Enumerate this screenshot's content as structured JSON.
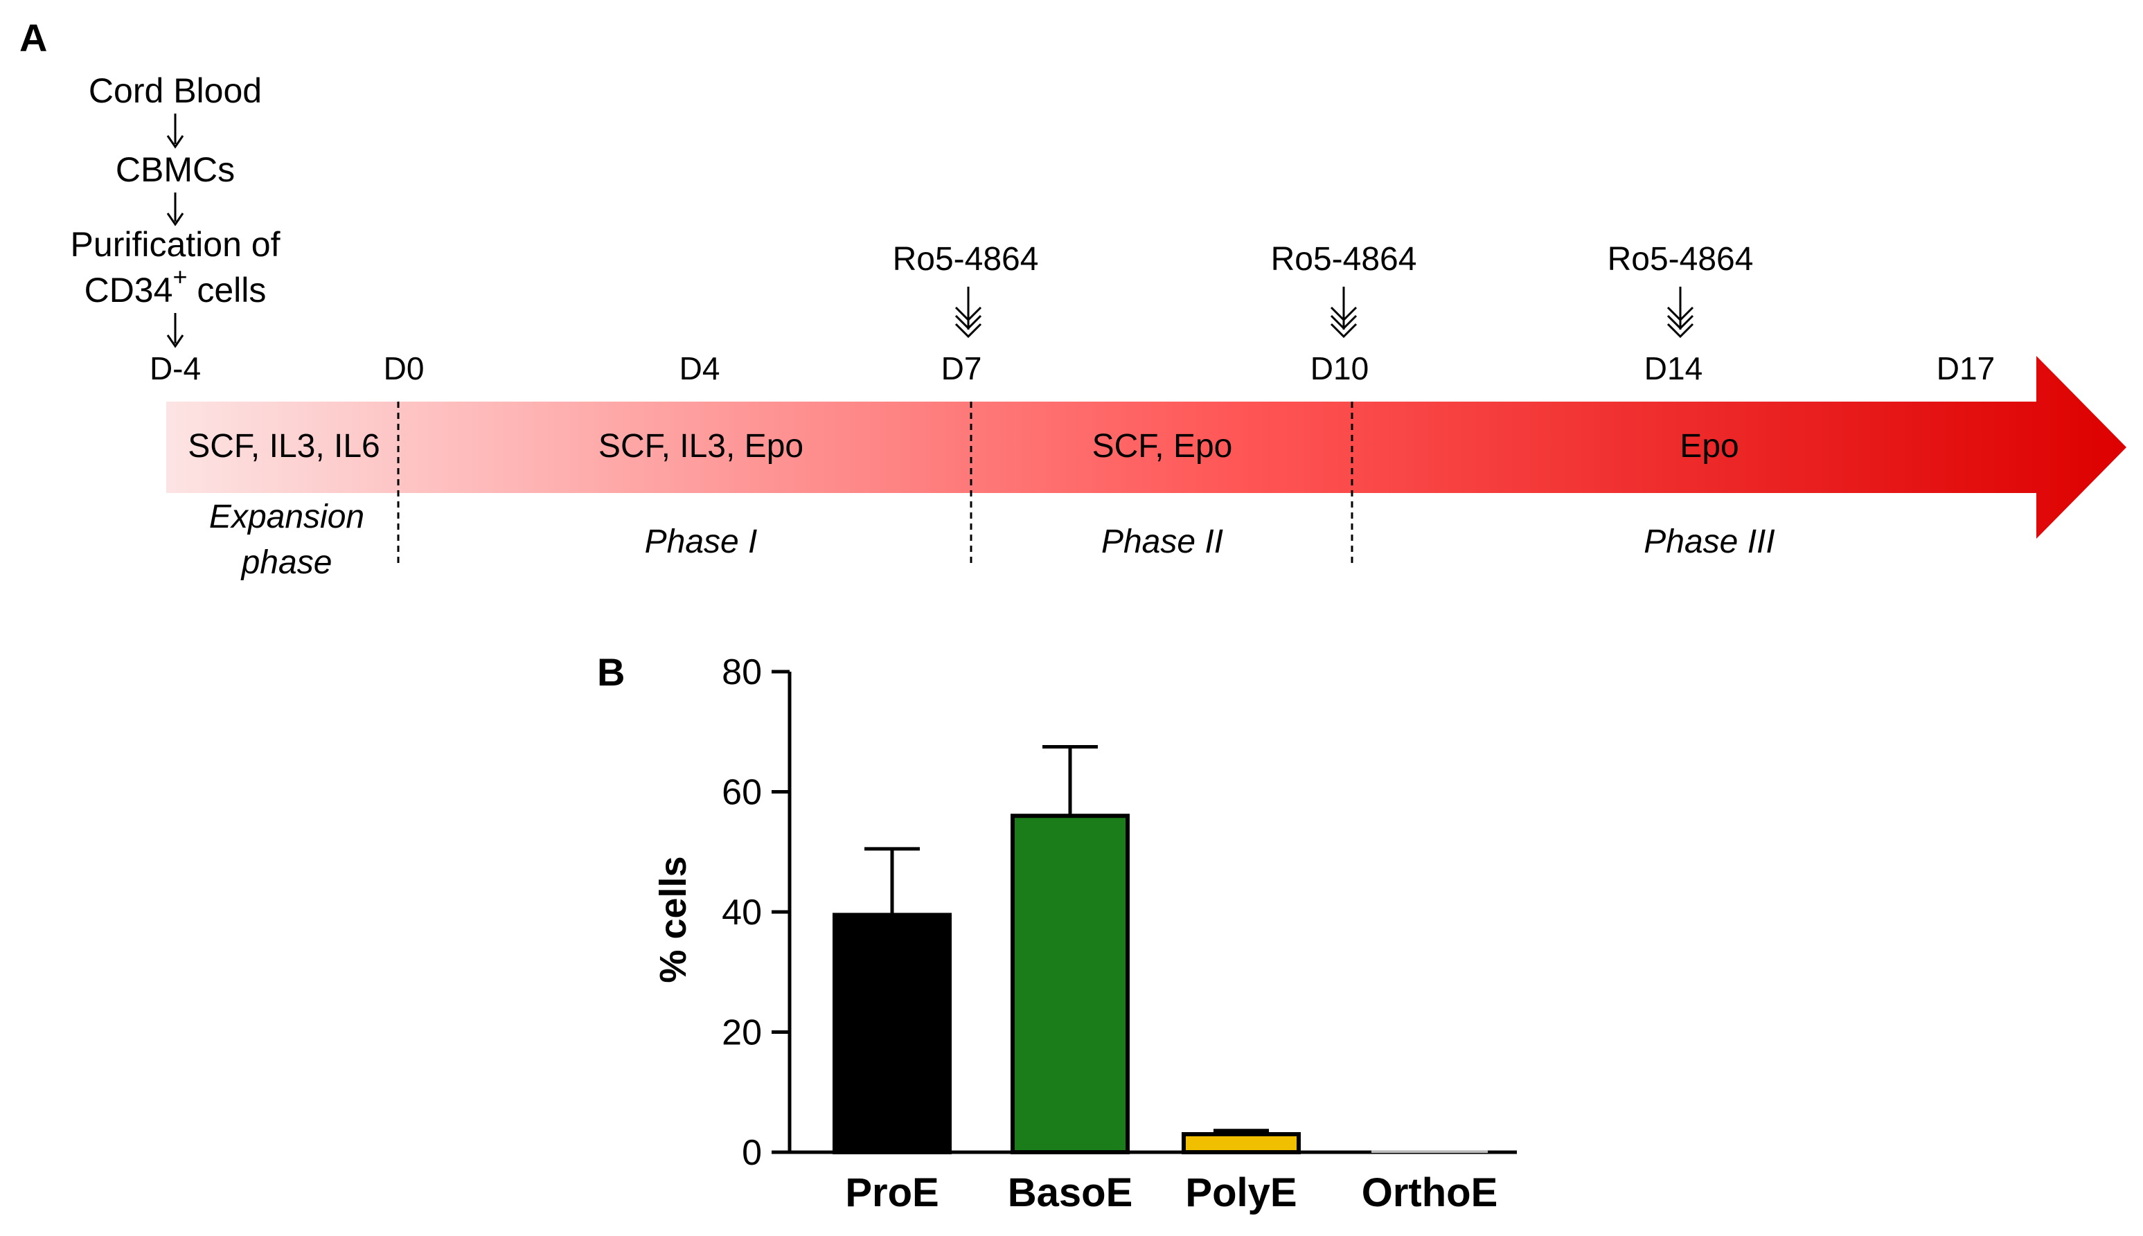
{
  "panel_a": {
    "label": "A",
    "flow": [
      {
        "id": "cord_blood",
        "text": "Cord Blood"
      },
      {
        "id": "cbmcs",
        "text": "CBMCs"
      },
      {
        "id": "purification_line1",
        "text": "Purification of"
      },
      {
        "id": "purification_line2_main",
        "text": "CD34"
      },
      {
        "id": "purification_line2_sup",
        "text": "+"
      },
      {
        "id": "purification_line2_rest",
        "text": " cells"
      }
    ],
    "days": [
      "D-4",
      "D0",
      "D4",
      "D7",
      "D10",
      "D14",
      "D17"
    ],
    "conditions": [
      {
        "id": "cond_expansion",
        "text": "SCF, IL3, IL6"
      },
      {
        "id": "cond_phase1",
        "text": "SCF, IL3, Epo"
      },
      {
        "id": "cond_phase2",
        "text": "SCF, Epo"
      },
      {
        "id": "cond_phase3",
        "text": "Epo"
      }
    ],
    "phases": [
      {
        "id": "phase_expansion_1",
        "text": "Expansion"
      },
      {
        "id": "phase_expansion_2",
        "text": "phase"
      },
      {
        "id": "phase_1",
        "text": "Phase I"
      },
      {
        "id": "phase_2",
        "text": "Phase II"
      },
      {
        "id": "phase_3",
        "text": "Phase III"
      }
    ],
    "treatments": [
      {
        "day": "D7",
        "text": "Ro5-4864"
      },
      {
        "day": "D10",
        "text": "Ro5-4864"
      },
      {
        "day": "D14",
        "text": "Ro5-4864"
      }
    ],
    "arrow_gradient": [
      "#fde4e4",
      "#ff3b3b",
      "#dd0000"
    ]
  },
  "chart_data": {
    "type": "bar",
    "panel_label": "B",
    "categories": [
      "ProE",
      "BasoE",
      "PolyE",
      "OrthoE"
    ],
    "values": [
      39.5,
      56,
      3,
      0.2
    ],
    "errors": [
      11,
      11.5,
      0.6,
      0
    ],
    "colors": [
      "#000000",
      "#1a7d1a",
      "#f0c000",
      "#ffffff"
    ],
    "ylabel": "% cells",
    "ylim": [
      0,
      80
    ],
    "yticks": [
      0,
      20,
      40,
      60,
      80
    ],
    "grid": false
  }
}
